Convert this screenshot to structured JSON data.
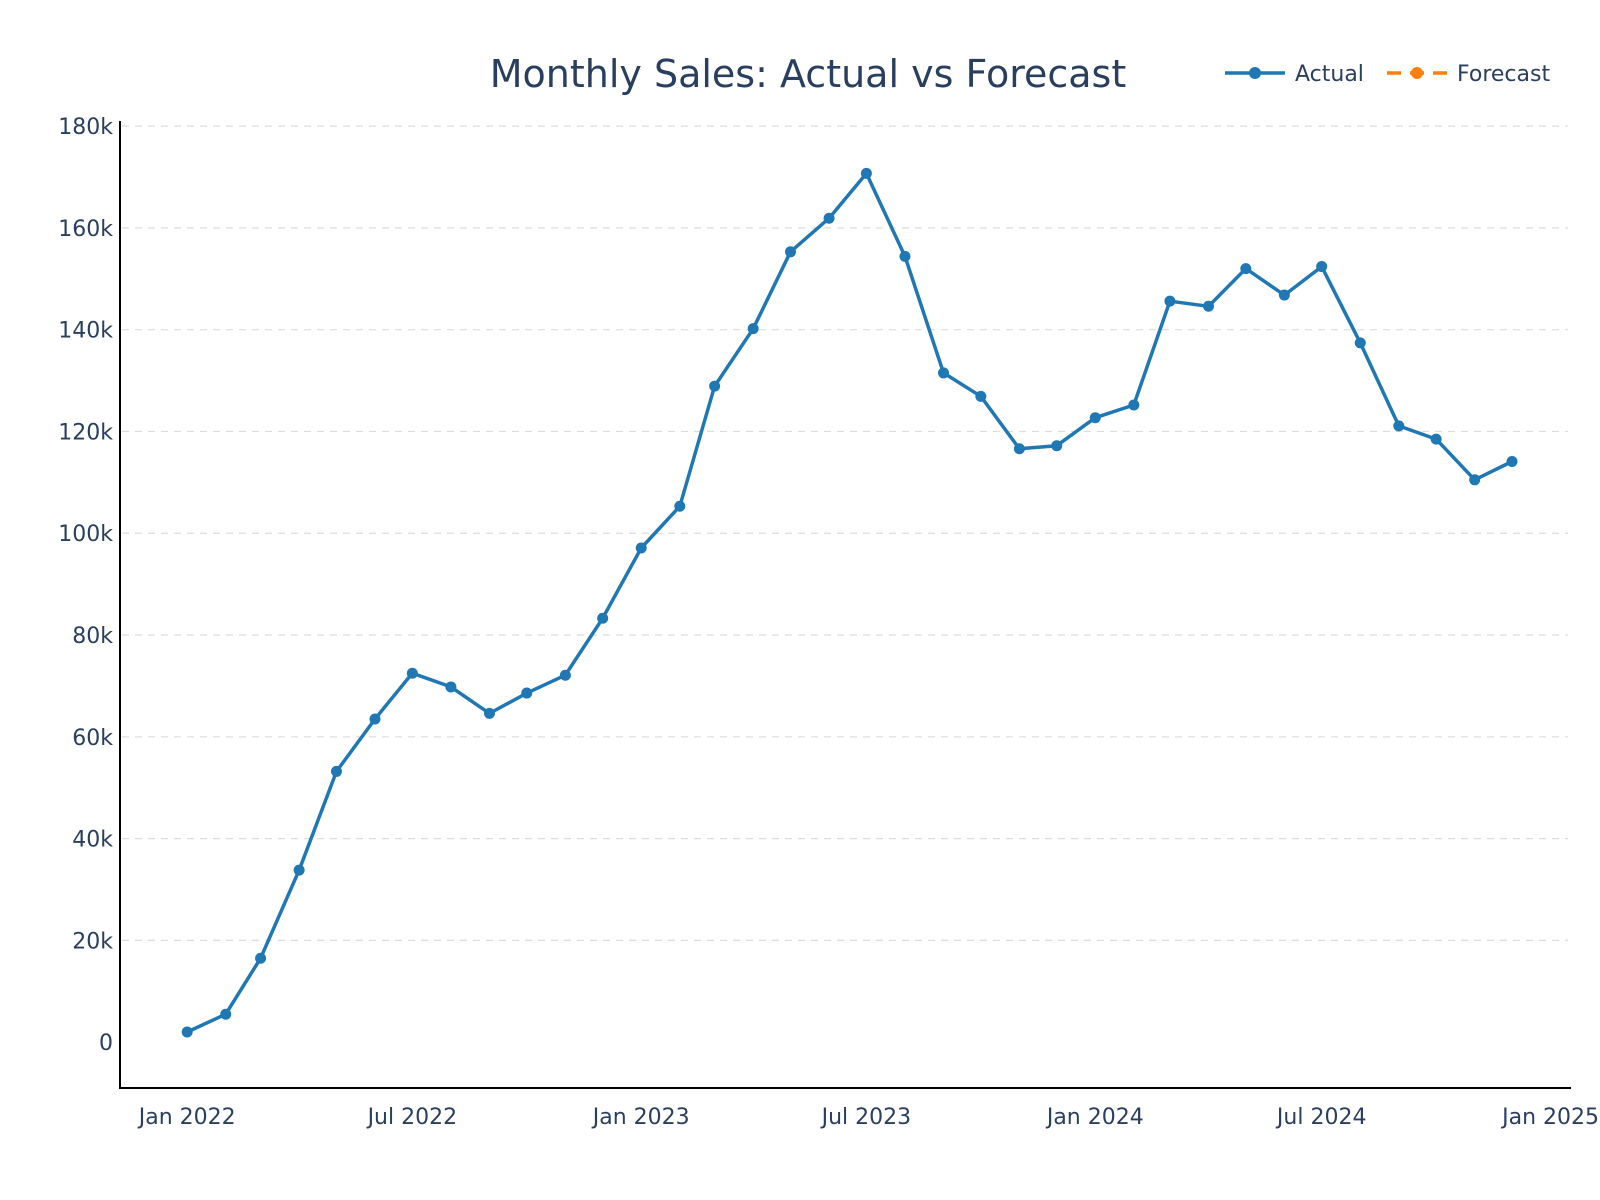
{
  "chart_data": {
    "type": "line",
    "title": "Monthly Sales: Actual vs Forecast",
    "xlabel": "",
    "ylabel": "",
    "ylim": [
      -9000,
      181000
    ],
    "xlim": [
      "2021-11-08",
      "2025-01-15"
    ],
    "grid": true,
    "legend": "top-right",
    "y_ticks": [
      0,
      20000,
      40000,
      60000,
      80000,
      100000,
      120000,
      140000,
      160000,
      180000
    ],
    "y_tick_labels": [
      "0",
      "20k",
      "40k",
      "60k",
      "80k",
      "100k",
      "120k",
      "140k",
      "160k",
      "180k"
    ],
    "x_ticks": [
      "2022-01-01",
      "2022-07-01",
      "2023-01-01",
      "2023-07-01",
      "2024-01-01",
      "2024-07-01",
      "2025-01-01"
    ],
    "x_tick_labels": [
      "Jan 2022",
      "Jul 2022",
      "Jan 2023",
      "Jul 2023",
      "Jan 2024",
      "Jul 2024",
      "Jan 2025"
    ],
    "series": [
      {
        "name": "Actual",
        "color": "#1f77b4",
        "style": "solid",
        "x": [
          "2022-01-01",
          "2022-02-01",
          "2022-03-01",
          "2022-04-01",
          "2022-05-01",
          "2022-06-01",
          "2022-07-01",
          "2022-08-01",
          "2022-09-01",
          "2022-10-01",
          "2022-11-01",
          "2022-12-01",
          "2023-01-01",
          "2023-02-01",
          "2023-03-01",
          "2023-04-01",
          "2023-05-01",
          "2023-06-01",
          "2023-07-01",
          "2023-08-01",
          "2023-09-01",
          "2023-10-01",
          "2023-11-01",
          "2023-12-01",
          "2024-01-01",
          "2024-02-01",
          "2024-03-01",
          "2024-04-01",
          "2024-05-01",
          "2024-06-01",
          "2024-07-01",
          "2024-08-01",
          "2024-09-01",
          "2024-10-01",
          "2024-11-01",
          "2024-12-01"
        ],
        "values": [
          2000,
          5500,
          16500,
          33800,
          53200,
          63500,
          72500,
          69800,
          64600,
          68600,
          72100,
          83300,
          97100,
          105300,
          128900,
          140200,
          155300,
          161900,
          170700,
          154400,
          131500,
          126900,
          116600,
          117200,
          122700,
          125200,
          145600,
          144600,
          152000,
          146800,
          152400,
          137400,
          121100,
          118500,
          110500,
          114100
        ]
      },
      {
        "name": "Forecast",
        "color": "#ff7f0e",
        "style": "dashed",
        "x": [],
        "values": []
      }
    ]
  }
}
